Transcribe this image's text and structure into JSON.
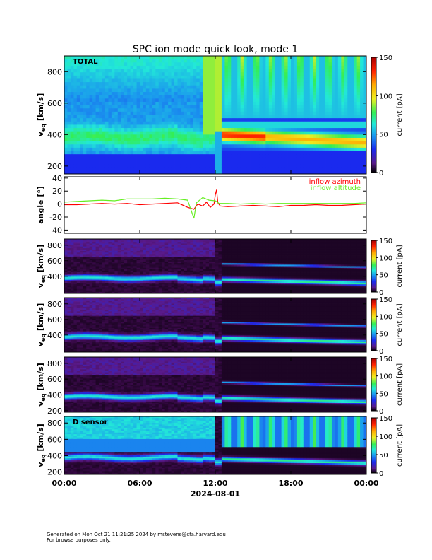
{
  "title": "SPC ion mode quick look, mode 1",
  "colors": {
    "inflow_azimuth": "#ff0000",
    "inflow_altitude": "#66ee22",
    "colormap": [
      "#000000",
      "#3a0a4a",
      "#5a1a8a",
      "#1a2aee",
      "#1a8aee",
      "#22dddd",
      "#33ee55",
      "#eeee22",
      "#ffaa00",
      "#ff2200",
      "#aa0000"
    ]
  },
  "footer": {
    "line1": "Generated on Mon Oct 21 11:21:25 2024 by mstevens@cfa.harvard.edu",
    "line2": "For browse purposes only."
  },
  "x_axis": {
    "ticks": [
      "00:00",
      "06:00",
      "12:00",
      "18:00",
      "00:00"
    ],
    "date_label": "2024-08-01"
  },
  "chart_data": [
    {
      "type": "heatmap",
      "panel": "total",
      "label": "TOTAL",
      "ylabel": "v_eq [km/s]",
      "ylabel_main": "v",
      "ylabel_sub": "eq",
      "ylabel_unit": "[km/s]",
      "yticks": [
        "200",
        "400",
        "600",
        "800"
      ],
      "ylim": [
        150,
        900
      ],
      "xlim_hours": [
        0,
        24
      ],
      "colorbar": {
        "label": "current [pA]",
        "ticks": [
          "0",
          "50",
          "100",
          "150"
        ],
        "range": [
          0,
          150
        ]
      },
      "core_speed_kms": [
        [
          0,
          380
        ],
        [
          6,
          380
        ],
        [
          12,
          330
        ],
        [
          12.3,
          400
        ],
        [
          16,
          380
        ],
        [
          20,
          350
        ],
        [
          24,
          345
        ]
      ]
    },
    {
      "type": "line",
      "panel": "angle",
      "ylabel": "angle [°]",
      "yticks": [
        "-40",
        "-20",
        "0",
        "20",
        "40"
      ],
      "ylim": [
        -45,
        42
      ],
      "xlim_hours": [
        0,
        24
      ],
      "series": [
        {
          "name": "inflow azimuth",
          "color": "#ff0000",
          "points": [
            [
              0,
              -1
            ],
            [
              1,
              -1
            ],
            [
              2,
              0
            ],
            [
              3,
              1
            ],
            [
              4,
              0
            ],
            [
              5,
              1
            ],
            [
              6,
              -1
            ],
            [
              7,
              0
            ],
            [
              8,
              1
            ],
            [
              9,
              2
            ],
            [
              9.8,
              -5
            ],
            [
              10.3,
              -8
            ],
            [
              10.6,
              0
            ],
            [
              11,
              -3
            ],
            [
              11.3,
              3
            ],
            [
              11.6,
              -5
            ],
            [
              11.9,
              0
            ],
            [
              12.0,
              14
            ],
            [
              12.1,
              22
            ],
            [
              12.2,
              2
            ],
            [
              12.4,
              -3
            ],
            [
              13,
              -4
            ],
            [
              14,
              -3
            ],
            [
              15,
              -2
            ],
            [
              16,
              -3
            ],
            [
              17,
              -4
            ],
            [
              18,
              -2
            ],
            [
              19,
              -2
            ],
            [
              20,
              -1
            ],
            [
              21,
              -2
            ],
            [
              22,
              -2
            ],
            [
              23,
              -1
            ],
            [
              24,
              0
            ]
          ]
        },
        {
          "name": "inflow altitude",
          "color": "#66ee22",
          "points": [
            [
              0,
              3
            ],
            [
              1,
              4
            ],
            [
              2,
              5
            ],
            [
              3,
              6
            ],
            [
              4,
              5
            ],
            [
              5,
              8
            ],
            [
              6,
              8
            ],
            [
              7,
              8
            ],
            [
              8,
              9
            ],
            [
              9,
              8
            ],
            [
              9.8,
              6
            ],
            [
              10.3,
              -22
            ],
            [
              10.5,
              2
            ],
            [
              11,
              10
            ],
            [
              11.5,
              6
            ],
            [
              12,
              5
            ],
            [
              12.3,
              1
            ],
            [
              13,
              1
            ],
            [
              14,
              0
            ],
            [
              15,
              1
            ],
            [
              16,
              0
            ],
            [
              17,
              1
            ],
            [
              18,
              1
            ],
            [
              19,
              1
            ],
            [
              20,
              1
            ],
            [
              21,
              1
            ],
            [
              22,
              1
            ],
            [
              23,
              1
            ],
            [
              24,
              2
            ]
          ]
        }
      ]
    },
    {
      "type": "heatmap",
      "panel": "sensor_a",
      "label": "",
      "ylabel": "v_eq [km/s]",
      "ylabel_main": "v",
      "ylabel_sub": "eq",
      "ylabel_unit": "[km/s]",
      "yticks": [
        "400",
        "600",
        "800"
      ],
      "ylim": [
        180,
        880
      ],
      "xlim_hours": [
        0,
        24
      ],
      "colorbar": {
        "label": "current [pA]",
        "ticks": [
          "0",
          "50",
          "100",
          "150"
        ],
        "range": [
          0,
          150
        ]
      }
    },
    {
      "type": "heatmap",
      "panel": "sensor_b",
      "label": "",
      "ylabel": "v_eq [km/s]",
      "ylabel_main": "v",
      "ylabel_sub": "eq",
      "ylabel_unit": "[km/s]",
      "yticks": [
        "400",
        "600",
        "800"
      ],
      "ylim": [
        180,
        880
      ],
      "xlim_hours": [
        0,
        24
      ],
      "colorbar": {
        "label": "current [pA]",
        "ticks": [
          "0",
          "50",
          "100",
          "150"
        ],
        "range": [
          0,
          150
        ]
      }
    },
    {
      "type": "heatmap",
      "panel": "sensor_c",
      "label": "",
      "ylabel": "v_eq [km/s]",
      "ylabel_main": "v",
      "ylabel_sub": "eq",
      "ylabel_unit": "[km/s]",
      "yticks": [
        "200",
        "400",
        "600",
        "800"
      ],
      "ylim": [
        180,
        880
      ],
      "xlim_hours": [
        0,
        24
      ],
      "colorbar": {
        "label": "current [pA]",
        "ticks": [
          "0",
          "50",
          "100",
          "150"
        ],
        "range": [
          0,
          150
        ]
      }
    },
    {
      "type": "heatmap",
      "panel": "sensor_d",
      "label": "D sensor",
      "ylabel": "v_eq [km/s]",
      "ylabel_main": "v",
      "ylabel_sub": "eq",
      "ylabel_unit": "[km/s]",
      "yticks": [
        "200",
        "400",
        "600",
        "800"
      ],
      "ylim": [
        170,
        880
      ],
      "xlim_hours": [
        0,
        24
      ],
      "colorbar": {
        "label": "current [pA]",
        "ticks": [
          "0",
          "50",
          "100",
          "150"
        ],
        "range": [
          0,
          150
        ]
      }
    }
  ]
}
